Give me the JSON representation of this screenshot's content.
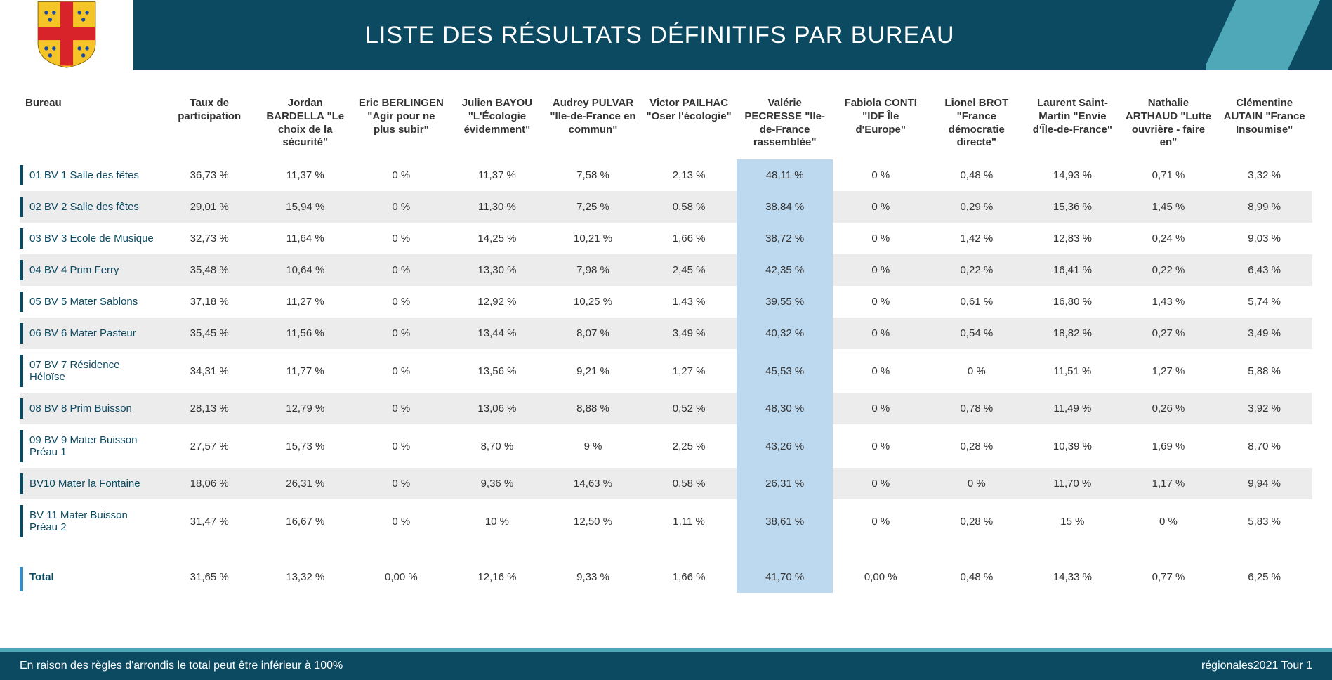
{
  "page": {
    "title": "LISTE DES RÉSULTATS DÉFINITIFS PAR BUREAU",
    "footer_note": "En raison des règles d'arrondis le total peut être inférieur à 100%",
    "footer_right": "régionales2021 Tour 1"
  },
  "colors": {
    "header_bg": "#0c4a62",
    "accent": "#4fa8b8",
    "highlight": "#bdd9ef",
    "row_alt": "#ececec",
    "text": "#333333"
  },
  "table": {
    "highlight_col_index": 7,
    "columns": [
      "Bureau",
      "Taux de participation",
      "Jordan BARDELLA \"Le choix de la sécurité\"",
      "Eric BERLINGEN \"Agir pour ne plus subir\"",
      "Julien BAYOU \"L'Écologie évidemment\"",
      "Audrey PULVAR \"Ile-de-France en commun\"",
      "Victor PAILHAC \"Oser l'écologie\"",
      "Valérie PECRESSE \"Ile-de-France rassemblée\"",
      "Fabiola CONTI \"IDF Île d'Europe\"",
      "Lionel BROT \"France démocratie directe\"",
      "Laurent Saint-Martin \"Envie d'Île-de-France\"",
      "Nathalie ARTHAUD \"Lutte ouvrière - faire en\"",
      "Clémentine AUTAIN \"France Insoumise\""
    ],
    "rows": [
      {
        "label": "01 BV 1 Salle des fêtes",
        "cells": [
          "36,73 %",
          "11,37 %",
          "0 %",
          "11,37 %",
          "7,58 %",
          "2,13 %",
          "48,11 %",
          "0 %",
          "0,48 %",
          "14,93 %",
          "0,71 %",
          "3,32 %"
        ]
      },
      {
        "label": "02 BV 2 Salle des fêtes",
        "cells": [
          "29,01 %",
          "15,94 %",
          "0 %",
          "11,30 %",
          "7,25 %",
          "0,58 %",
          "38,84 %",
          "0 %",
          "0,29 %",
          "15,36 %",
          "1,45 %",
          "8,99 %"
        ]
      },
      {
        "label": "03 BV 3 Ecole de Musique",
        "cells": [
          "32,73 %",
          "11,64 %",
          "0 %",
          "14,25 %",
          "10,21 %",
          "1,66 %",
          "38,72 %",
          "0 %",
          "1,42 %",
          "12,83 %",
          "0,24 %",
          "9,03 %"
        ]
      },
      {
        "label": "04 BV 4 Prim Ferry",
        "cells": [
          "35,48 %",
          "10,64 %",
          "0 %",
          "13,30 %",
          "7,98 %",
          "2,45 %",
          "42,35 %",
          "0 %",
          "0,22 %",
          "16,41 %",
          "0,22 %",
          "6,43 %"
        ]
      },
      {
        "label": "05 BV 5 Mater Sablons",
        "cells": [
          "37,18 %",
          "11,27 %",
          "0 %",
          "12,92 %",
          "10,25 %",
          "1,43 %",
          "39,55 %",
          "0 %",
          "0,61 %",
          "16,80 %",
          "1,43 %",
          "5,74 %"
        ]
      },
      {
        "label": "06 BV 6 Mater Pasteur",
        "cells": [
          "35,45 %",
          "11,56 %",
          "0 %",
          "13,44 %",
          "8,07 %",
          "3,49 %",
          "40,32 %",
          "0 %",
          "0,54 %",
          "18,82 %",
          "0,27 %",
          "3,49 %"
        ]
      },
      {
        "label": "07 BV 7 Résidence Héloïse",
        "cells": [
          "34,31 %",
          "11,77 %",
          "0 %",
          "13,56 %",
          "9,21 %",
          "1,27 %",
          "45,53 %",
          "0 %",
          "0 %",
          "11,51 %",
          "1,27 %",
          "5,88 %"
        ]
      },
      {
        "label": "08 BV 8 Prim Buisson",
        "cells": [
          "28,13 %",
          "12,79 %",
          "0 %",
          "13,06 %",
          "8,88 %",
          "0,52 %",
          "48,30 %",
          "0 %",
          "0,78 %",
          "11,49 %",
          "0,26 %",
          "3,92 %"
        ]
      },
      {
        "label": "09 BV 9 Mater Buisson Préau 1",
        "cells": [
          "27,57 %",
          "15,73 %",
          "0 %",
          "8,70 %",
          "9 %",
          "2,25 %",
          "43,26 %",
          "0 %",
          "0,28 %",
          "10,39 %",
          "1,69 %",
          "8,70 %"
        ]
      },
      {
        "label": "BV10 Mater la Fontaine",
        "cells": [
          "18,06 %",
          "26,31 %",
          "0 %",
          "9,36 %",
          "14,63 %",
          "0,58 %",
          "26,31 %",
          "0 %",
          "0 %",
          "11,70 %",
          "1,17 %",
          "9,94 %"
        ]
      },
      {
        "label": "BV 11 Mater Buisson Préau 2",
        "cells": [
          "31,47 %",
          "16,67 %",
          "0 %",
          "10 %",
          "12,50 %",
          "1,11 %",
          "38,61 %",
          "0 %",
          "0,28 %",
          "15 %",
          "0 %",
          "5,83 %"
        ]
      }
    ],
    "total": {
      "label": "Total",
      "cells": [
        "31,65 %",
        "13,32 %",
        "0,00 %",
        "12,16 %",
        "9,33 %",
        "1,66 %",
        "41,70 %",
        "0,00 %",
        "0,48 %",
        "14,33 %",
        "0,77 %",
        "6,25 %"
      ]
    }
  }
}
